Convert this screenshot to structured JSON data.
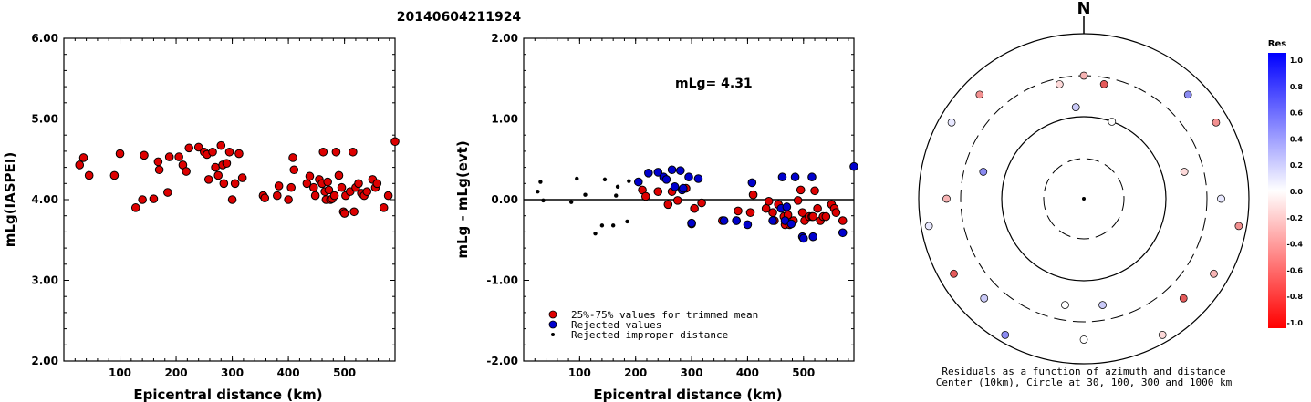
{
  "title": "20140604211924",
  "chart_data": [
    {
      "type": "scatter",
      "id": "left",
      "ylabel": "mLg(IASPEI)",
      "xlabel": "Epicentral distance (km)",
      "xlim": [
        0,
        590
      ],
      "ylim": [
        2.0,
        6.0
      ],
      "xticks": [
        "100",
        "200",
        "300",
        "400",
        "500"
      ],
      "yticks": [
        "2.00",
        "3.00",
        "4.00",
        "5.00",
        "6.00"
      ],
      "series": [
        {
          "color": "#dd0000",
          "points": [
            [
              28,
              4.43
            ],
            [
              35,
              4.52
            ],
            [
              45,
              4.3
            ],
            [
              90,
              4.3
            ],
            [
              100,
              4.57
            ],
            [
              128,
              3.9
            ],
            [
              140,
              4.0
            ],
            [
              143,
              4.55
            ],
            [
              160,
              4.01
            ],
            [
              168,
              4.47
            ],
            [
              170,
              4.37
            ],
            [
              185,
              4.09
            ],
            [
              188,
              4.53
            ],
            [
              205,
              4.53
            ],
            [
              212,
              4.43
            ],
            [
              218,
              4.35
            ],
            [
              223,
              4.64
            ],
            [
              240,
              4.65
            ],
            [
              250,
              4.59
            ],
            [
              255,
              4.56
            ],
            [
              258,
              4.25
            ],
            [
              265,
              4.59
            ],
            [
              270,
              4.4
            ],
            [
              275,
              4.3
            ],
            [
              280,
              4.67
            ],
            [
              283,
              4.43
            ],
            [
              285,
              4.2
            ],
            [
              290,
              4.45
            ],
            [
              295,
              4.59
            ],
            [
              300,
              4.0
            ],
            [
              305,
              4.2
            ],
            [
              312,
              4.57
            ],
            [
              318,
              4.27
            ],
            [
              355,
              4.05
            ],
            [
              358,
              4.02
            ],
            [
              380,
              4.05
            ],
            [
              383,
              4.17
            ],
            [
              400,
              4.0
            ],
            [
              405,
              4.15
            ],
            [
              408,
              4.52
            ],
            [
              410,
              4.37
            ],
            [
              433,
              4.2
            ],
            [
              438,
              4.29
            ],
            [
              445,
              4.15
            ],
            [
              448,
              4.05
            ],
            [
              455,
              4.25
            ],
            [
              460,
              4.2
            ],
            [
              462,
              4.59
            ],
            [
              465,
              4.1
            ],
            [
              467,
              4.0
            ],
            [
              470,
              4.22
            ],
            [
              472,
              4.12
            ],
            [
              475,
              4.0
            ],
            [
              478,
              4.01
            ],
            [
              482,
              4.05
            ],
            [
              485,
              4.59
            ],
            [
              490,
              4.3
            ],
            [
              495,
              4.15
            ],
            [
              498,
              3.85
            ],
            [
              500,
              3.83
            ],
            [
              502,
              4.05
            ],
            [
              510,
              4.1
            ],
            [
              515,
              4.59
            ],
            [
              517,
              3.85
            ],
            [
              520,
              4.15
            ],
            [
              525,
              4.2
            ],
            [
              530,
              4.08
            ],
            [
              535,
              4.05
            ],
            [
              540,
              4.1
            ],
            [
              550,
              4.25
            ],
            [
              555,
              4.15
            ],
            [
              558,
              4.2
            ],
            [
              570,
              3.9
            ],
            [
              578,
              4.05
            ],
            [
              590,
              4.72
            ],
            [
              592,
              4.6
            ],
            [
              600,
              4.0
            ],
            [
              605,
              3.95
            ]
          ]
        }
      ]
    },
    {
      "type": "scatter",
      "id": "middle",
      "ylabel": "mLg - mLg(evt)",
      "xlabel": "Epicentral distance (km)",
      "xlim": [
        0,
        590
      ],
      "ylim": [
        -2.0,
        2.0
      ],
      "xticks": [
        "100",
        "200",
        "300",
        "400",
        "500"
      ],
      "yticks": [
        "-2.00",
        "-1.00",
        "0.00",
        "1.00",
        "2.00"
      ],
      "reference_line": 0.0,
      "annotation": "mLg= 4.31",
      "legend": {
        "placement": "bottom-left",
        "entries": [
          "25%-75% values for trimmed mean",
          "Rejected values",
          "Rejected improper distance"
        ]
      },
      "series": [
        {
          "name": "25%-75% values for trimmed mean",
          "color": "#dd0000",
          "points": [
            [
              212,
              0.12
            ],
            [
              218,
              0.04
            ],
            [
              240,
              0.1
            ],
            [
              258,
              -0.06
            ],
            [
              265,
              0.1
            ],
            [
              275,
              -0.01
            ],
            [
              290,
              0.14
            ],
            [
              300,
              -0.3
            ],
            [
              305,
              -0.11
            ],
            [
              318,
              -0.04
            ],
            [
              355,
              -0.26
            ],
            [
              380,
              -0.26
            ],
            [
              383,
              -0.14
            ],
            [
              405,
              -0.16
            ],
            [
              410,
              0.06
            ],
            [
              433,
              -0.11
            ],
            [
              438,
              -0.02
            ],
            [
              445,
              -0.16
            ],
            [
              448,
              -0.26
            ],
            [
              455,
              -0.06
            ],
            [
              465,
              -0.21
            ],
            [
              467,
              -0.31
            ],
            [
              472,
              -0.19
            ],
            [
              475,
              -0.31
            ],
            [
              482,
              -0.26
            ],
            [
              490,
              -0.01
            ],
            [
              495,
              0.12
            ],
            [
              498,
              -0.16
            ],
            [
              502,
              -0.26
            ],
            [
              510,
              -0.21
            ],
            [
              515,
              -0.21
            ],
            [
              517,
              -0.21
            ],
            [
              520,
              0.11
            ],
            [
              525,
              -0.11
            ],
            [
              530,
              -0.26
            ],
            [
              535,
              -0.21
            ],
            [
              540,
              -0.21
            ],
            [
              550,
              -0.06
            ],
            [
              555,
              -0.11
            ],
            [
              558,
              -0.16
            ],
            [
              570,
              -0.26
            ],
            [
              605,
              -0.36
            ]
          ]
        },
        {
          "name": "Rejected values",
          "color": "#0000cc",
          "points": [
            [
              205,
              0.22
            ],
            [
              223,
              0.33
            ],
            [
              240,
              0.34
            ],
            [
              250,
              0.28
            ],
            [
              255,
              0.25
            ],
            [
              265,
              0.37
            ],
            [
              270,
              0.16
            ],
            [
              280,
              0.36
            ],
            [
              283,
              0.12
            ],
            [
              285,
              0.14
            ],
            [
              295,
              0.28
            ],
            [
              300,
              -0.29
            ],
            [
              312,
              0.26
            ],
            [
              358,
              -0.26
            ],
            [
              380,
              -0.26
            ],
            [
              400,
              -0.31
            ],
            [
              408,
              0.21
            ],
            [
              445,
              -0.26
            ],
            [
              460,
              -0.11
            ],
            [
              462,
              0.28
            ],
            [
              467,
              -0.26
            ],
            [
              470,
              -0.09
            ],
            [
              478,
              -0.3
            ],
            [
              485,
              0.28
            ],
            [
              498,
              -0.46
            ],
            [
              500,
              -0.48
            ],
            [
              515,
              0.28
            ],
            [
              517,
              -0.46
            ],
            [
              570,
              -0.41
            ],
            [
              590,
              0.41
            ],
            [
              592,
              0.29
            ],
            [
              600,
              -0.31
            ],
            [
              605,
              -0.36
            ]
          ]
        },
        {
          "name": "Rejected improper distance",
          "color": "#000000",
          "points": [
            [
              25,
              0.1
            ],
            [
              30,
              0.22
            ],
            [
              35,
              -0.01
            ],
            [
              85,
              -0.03
            ],
            [
              95,
              0.26
            ],
            [
              110,
              0.06
            ],
            [
              128,
              -0.42
            ],
            [
              140,
              -0.32
            ],
            [
              145,
              0.25
            ],
            [
              160,
              -0.32
            ],
            [
              165,
              0.05
            ],
            [
              168,
              0.16
            ],
            [
              185,
              -0.27
            ],
            [
              188,
              0.23
            ]
          ]
        }
      ]
    },
    {
      "type": "scatter",
      "id": "polar",
      "north_label": "N",
      "caption_lines": [
        "Residuals as a function of azimuth and distance",
        "Center (10km), Circle at 30, 100, 300 and 1000 km"
      ],
      "rings_km": [
        30,
        100,
        300,
        1000
      ],
      "points_azimuth_deg_distance_km": [
        [
          0,
          300
        ],
        [
          10,
          250
        ],
        [
          -5,
          130
        ],
        [
          20,
          100
        ],
        [
          -12,
          255
        ],
        [
          45,
          600
        ],
        [
          -45,
          600
        ],
        [
          90,
          450
        ],
        [
          -90,
          450
        ],
        [
          135,
          500
        ],
        [
          -135,
          500
        ],
        [
          180,
          500
        ],
        [
          75,
          180
        ],
        [
          -75,
          180
        ],
        [
          60,
          700
        ],
        [
          -60,
          700
        ],
        [
          120,
          650
        ],
        [
          -120,
          650
        ],
        [
          170,
          200
        ],
        [
          -170,
          200
        ],
        [
          150,
          800
        ],
        [
          -150,
          800
        ],
        [
          100,
          800
        ],
        [
          -100,
          800
        ]
      ],
      "colorbar": {
        "title": "Res",
        "ticks": [
          "1.0",
          "0.8",
          "0.6",
          "0.4",
          "0.2",
          "0.0",
          "-0.2",
          "-0.4",
          "-0.6",
          "-0.8",
          "-1.0"
        ],
        "range": [
          -1.0,
          1.0
        ]
      }
    }
  ]
}
